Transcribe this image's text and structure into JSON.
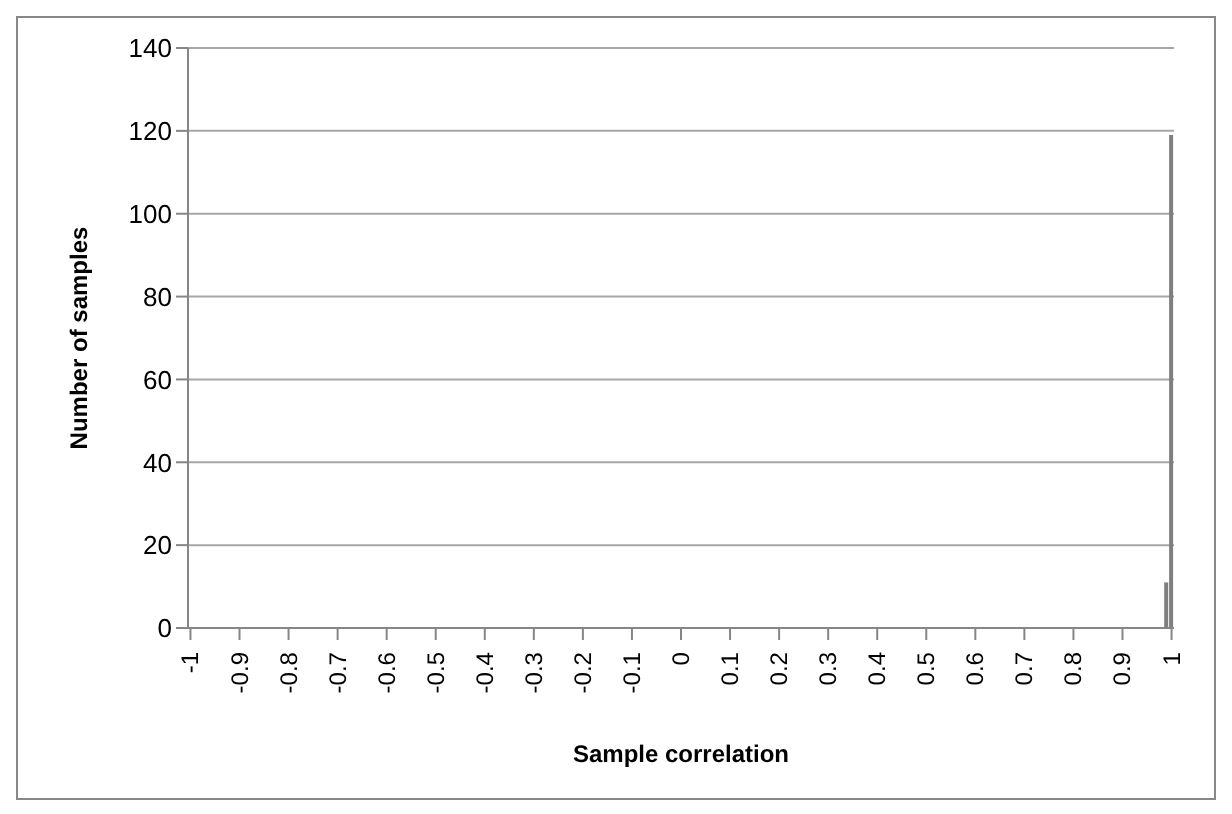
{
  "chart_data": {
    "type": "bar",
    "xlabel": "Sample correlation",
    "ylabel": "Number of samples",
    "x": [
      0.99,
      1
    ],
    "values": [
      11,
      119
    ],
    "color": "#7f7f7f",
    "xlim": [
      -1.005,
      1.005
    ],
    "xticks": [
      -1,
      -0.9,
      -0.8,
      -0.7,
      -0.6,
      -0.5,
      -0.4,
      -0.3,
      -0.2,
      -0.1,
      0,
      0.1,
      0.2,
      0.3,
      0.4,
      0.5,
      0.6,
      0.7,
      0.8,
      0.9,
      1
    ],
    "ylim": [
      0,
      140
    ],
    "yticks": [
      0,
      20,
      40,
      60,
      80,
      100,
      120,
      140
    ],
    "grid": "y"
  }
}
